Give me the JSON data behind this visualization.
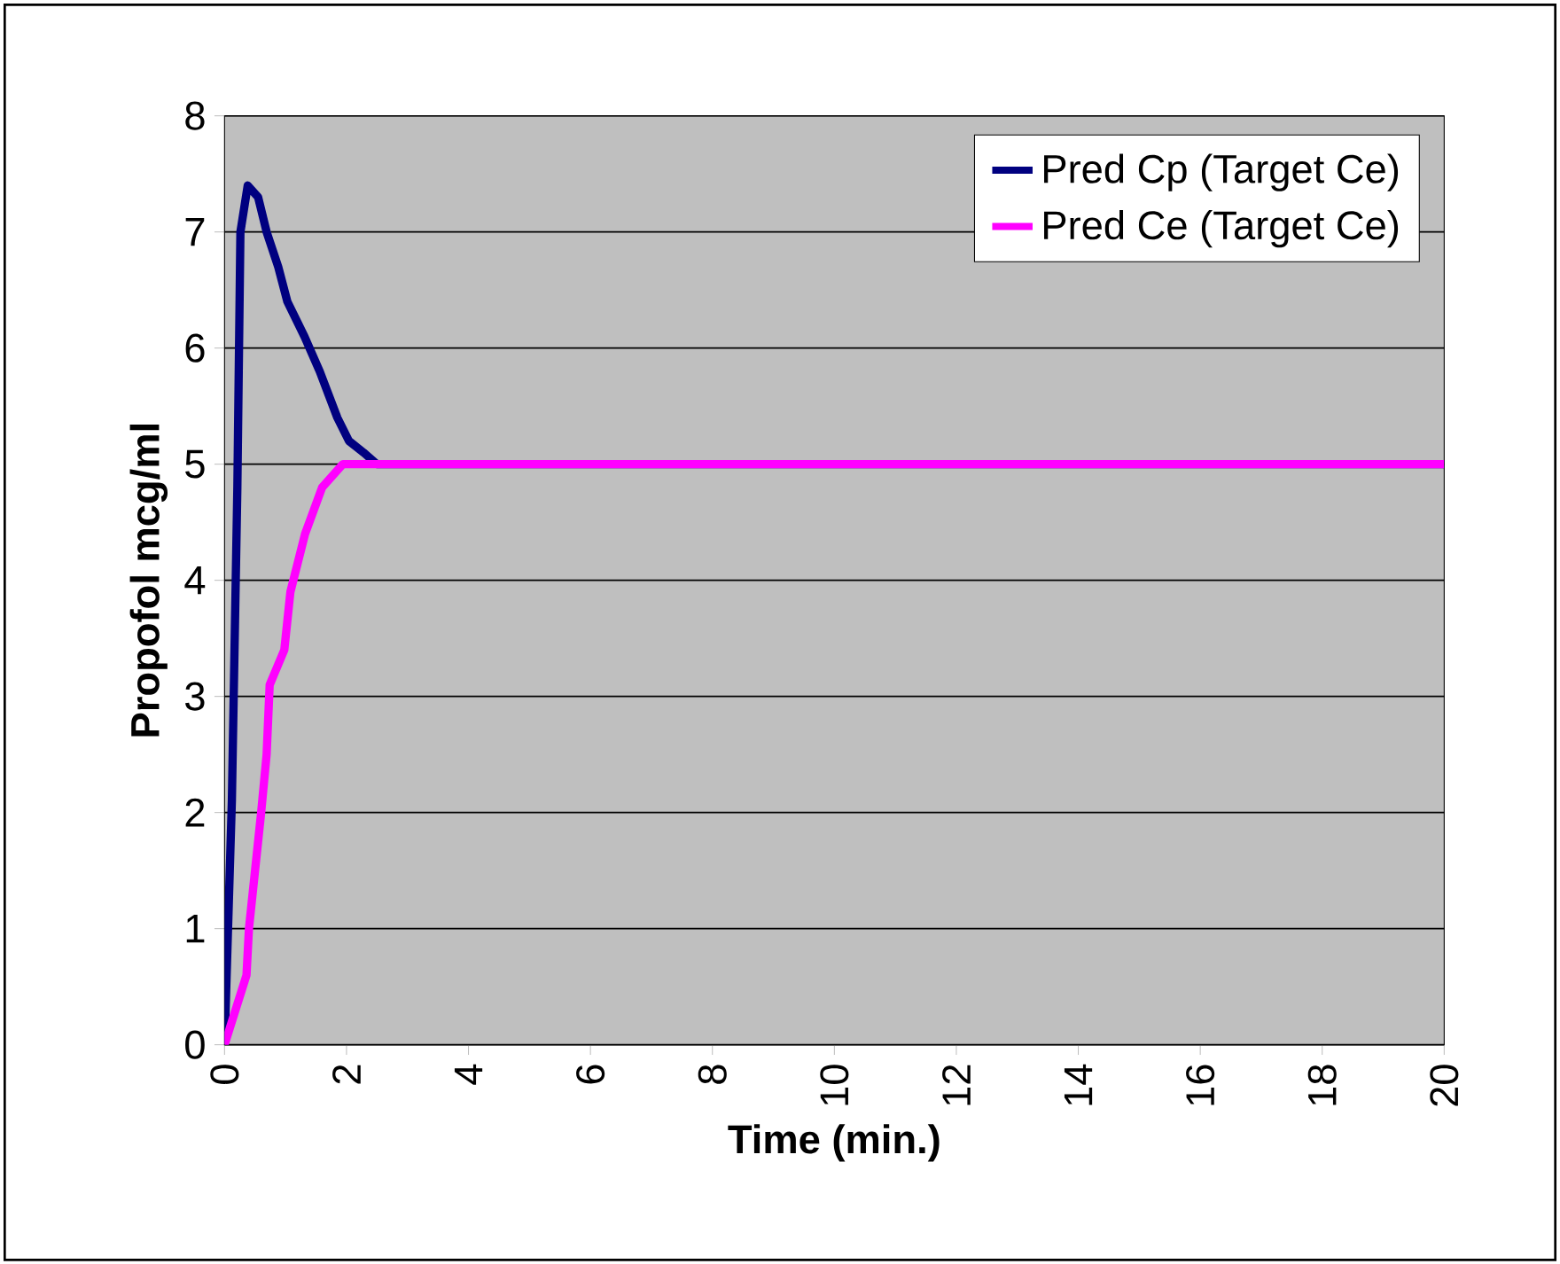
{
  "chart_data": {
    "type": "line",
    "xlabel": "Time (min.)",
    "ylabel": "Propofol mcg/ml",
    "xlim": [
      0,
      20
    ],
    "xticks": [
      0,
      2,
      4,
      6,
      8,
      10,
      12,
      14,
      16,
      18,
      20
    ],
    "ylim": [
      0,
      8
    ],
    "yticks": [
      0,
      1,
      2,
      3,
      4,
      5,
      6,
      7,
      8
    ],
    "grid": "y",
    "legend": "top right",
    "marker": "none",
    "line_style": "solid",
    "series": [
      {
        "name": "Pred Cp (Target Ce)",
        "color": "#000080",
        "x": [
          0,
          0.12,
          0.21,
          0.26,
          0.38,
          0.55,
          0.69,
          0.88,
          1.03,
          1.31,
          1.56,
          1.85,
          2.04,
          2.28,
          2.5,
          20
        ],
        "values": [
          0,
          2.1,
          4.8,
          7,
          7.4,
          7.3,
          7,
          6.7,
          6.4,
          6.1,
          5.8,
          5.4,
          5.2,
          5.1,
          5,
          5
        ]
      },
      {
        "name": "Pred Ce (Target Ce)",
        "color": "#ff00ff",
        "x": [
          0,
          0.36,
          0.4,
          0.6,
          0.69,
          0.74,
          0.98,
          1.08,
          1.32,
          1.6,
          1.94,
          2.23,
          20
        ],
        "values": [
          0,
          0.6,
          1,
          2,
          2.5,
          3.1,
          3.4,
          3.9,
          4.4,
          4.8,
          5,
          5,
          5
        ]
      }
    ]
  }
}
